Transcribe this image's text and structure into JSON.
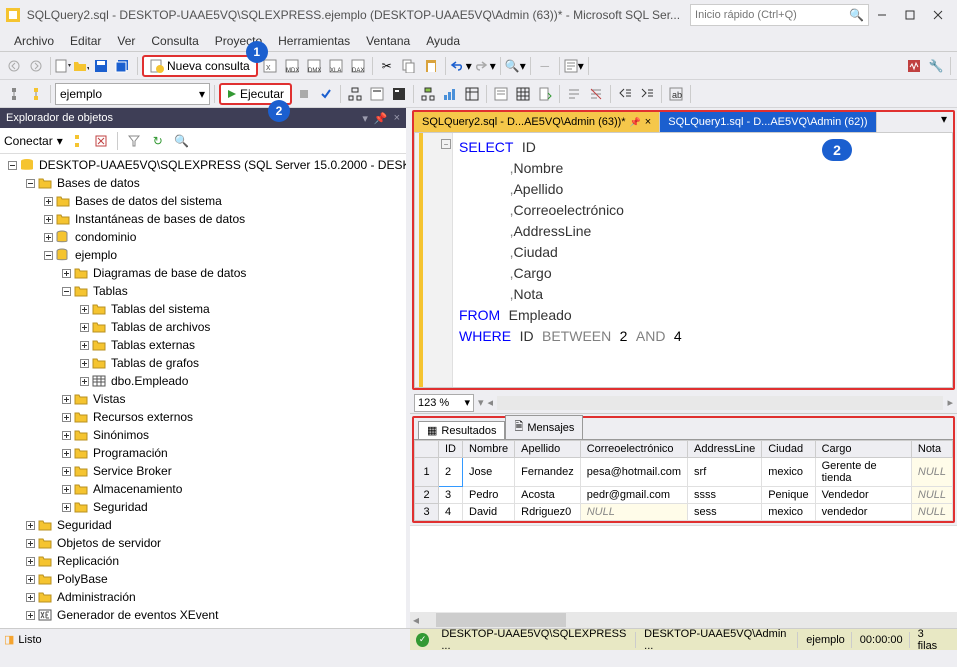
{
  "titlebar": {
    "title": "SQLQuery2.sql - DESKTOP-UAAE5VQ\\SQLEXPRESS.ejemplo (DESKTOP-UAAE5VQ\\Admin (63))* - Microsoft SQL Ser...",
    "quick_placeholder": "Inicio rápido (Ctrl+Q)"
  },
  "menu": [
    "Archivo",
    "Editar",
    "Ver",
    "Consulta",
    "Proyecto",
    "Herramientas",
    "Ventana",
    "Ayuda"
  ],
  "toolbar": {
    "nueva_consulta": "Nueva consulta",
    "ejecutar": "Ejecutar",
    "db": "ejemplo"
  },
  "annotations": {
    "nueva": "1",
    "ejecutar": "2",
    "editor": "2"
  },
  "explorer": {
    "title": "Explorador de objetos",
    "connect": "Conectar",
    "tree": [
      {
        "indent": 0,
        "exp": "minus",
        "icon": "srv",
        "label": "DESKTOP-UAAE5VQ\\SQLEXPRESS (SQL Server 15.0.2000 - DESK"
      },
      {
        "indent": 1,
        "exp": "minus",
        "icon": "folder",
        "label": "Bases de datos"
      },
      {
        "indent": 2,
        "exp": "plus",
        "icon": "folder",
        "label": "Bases de datos del sistema"
      },
      {
        "indent": 2,
        "exp": "plus",
        "icon": "folder",
        "label": "Instantáneas de bases de datos"
      },
      {
        "indent": 2,
        "exp": "plus",
        "icon": "db",
        "label": "condominio"
      },
      {
        "indent": 2,
        "exp": "minus",
        "icon": "db",
        "label": "ejemplo"
      },
      {
        "indent": 3,
        "exp": "plus",
        "icon": "folder",
        "label": "Diagramas de base de datos"
      },
      {
        "indent": 3,
        "exp": "minus",
        "icon": "folder",
        "label": "Tablas"
      },
      {
        "indent": 4,
        "exp": "plus",
        "icon": "folder",
        "label": "Tablas del sistema"
      },
      {
        "indent": 4,
        "exp": "plus",
        "icon": "folder",
        "label": "Tablas de archivos"
      },
      {
        "indent": 4,
        "exp": "plus",
        "icon": "folder",
        "label": "Tablas externas"
      },
      {
        "indent": 4,
        "exp": "plus",
        "icon": "folder",
        "label": "Tablas de grafos"
      },
      {
        "indent": 4,
        "exp": "plus",
        "icon": "table",
        "label": "dbo.Empleado"
      },
      {
        "indent": 3,
        "exp": "plus",
        "icon": "folder",
        "label": "Vistas"
      },
      {
        "indent": 3,
        "exp": "plus",
        "icon": "folder",
        "label": "Recursos externos"
      },
      {
        "indent": 3,
        "exp": "plus",
        "icon": "folder",
        "label": "Sinónimos"
      },
      {
        "indent": 3,
        "exp": "plus",
        "icon": "folder",
        "label": "Programación"
      },
      {
        "indent": 3,
        "exp": "plus",
        "icon": "folder",
        "label": "Service Broker"
      },
      {
        "indent": 3,
        "exp": "plus",
        "icon": "folder",
        "label": "Almacenamiento"
      },
      {
        "indent": 3,
        "exp": "plus",
        "icon": "folder",
        "label": "Seguridad"
      },
      {
        "indent": 1,
        "exp": "plus",
        "icon": "folder",
        "label": "Seguridad"
      },
      {
        "indent": 1,
        "exp": "plus",
        "icon": "folder",
        "label": "Objetos de servidor"
      },
      {
        "indent": 1,
        "exp": "plus",
        "icon": "folder",
        "label": "Replicación"
      },
      {
        "indent": 1,
        "exp": "plus",
        "icon": "folder",
        "label": "PolyBase"
      },
      {
        "indent": 1,
        "exp": "plus",
        "icon": "folder",
        "label": "Administración"
      },
      {
        "indent": 1,
        "exp": "plus",
        "icon": "xe",
        "label": "Generador de eventos XEvent"
      }
    ]
  },
  "editor": {
    "tabs": [
      {
        "label": "SQLQuery2.sql - D...AE5VQ\\Admin (63))*",
        "active": true
      },
      {
        "label": "SQLQuery1.sql - D...AE5VQ\\Admin (62))",
        "active": false
      }
    ],
    "sql": {
      "line1_kw": "SELECT",
      "line1_col": "ID",
      "cols": [
        "Nombre",
        "Apellido",
        "Correoelectrónico",
        "AddressLine",
        "Ciudad",
        "Cargo",
        "Nota"
      ],
      "from_kw": "FROM",
      "from_tbl": "Empleado",
      "where_kw": "WHERE",
      "where_col": "ID",
      "between_kw": "BETWEEN",
      "num1": "2",
      "and_kw": "AND",
      "num2": "4"
    },
    "zoom": "123 %"
  },
  "results": {
    "tabs": {
      "resultados": "Resultados",
      "mensajes": "Mensajes"
    },
    "columns": [
      "",
      "ID",
      "Nombre",
      "Apellido",
      "Correoelectrónico",
      "AddressLine",
      "Ciudad",
      "Cargo",
      "Nota"
    ],
    "rows": [
      [
        "1",
        "2",
        "Jose",
        "Fernandez",
        "pesa@hotmail.com",
        "srf",
        "mexico",
        "Gerente de tienda",
        "NULL"
      ],
      [
        "2",
        "3",
        "Pedro",
        "Acosta",
        "pedr@gmail.com",
        "ssss",
        "Penique",
        "Vendedor",
        "NULL"
      ],
      [
        "3",
        "4",
        "David",
        "Rdriguez0",
        "NULL",
        "sess",
        "mexico",
        "vendedor",
        "NULL"
      ]
    ]
  },
  "status": {
    "listo": "Listo",
    "conn": "DESKTOP-UAAE5VQ\\SQLEXPRESS ...",
    "user": "DESKTOP-UAAE5VQ\\Admin ...",
    "db": "ejemplo",
    "time": "00:00:00",
    "rows": "3 filas"
  }
}
